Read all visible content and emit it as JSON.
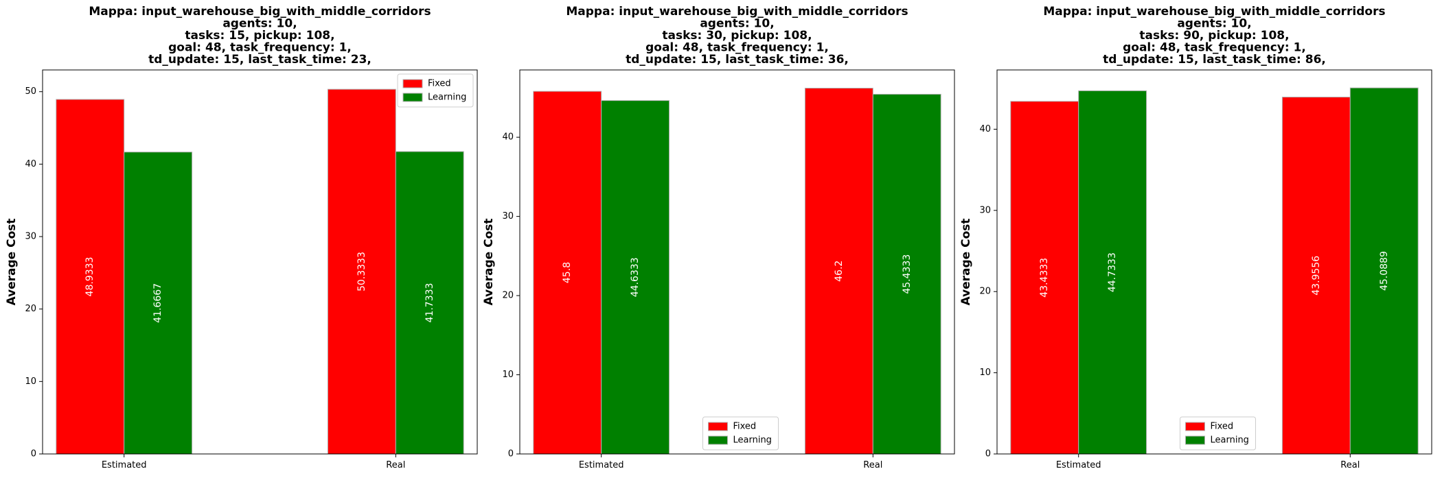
{
  "chart_data": [
    {
      "type": "bar",
      "title_lines": [
        "Mappa: input_warehouse_big_with_middle_corridors",
        "agents: 10,",
        "tasks: 15, pickup: 108,",
        "goal: 48, task_frequency: 1,",
        "td_update: 15, last_task_time: 23,"
      ],
      "ylabel": "Average Cost",
      "categories": [
        "Estimated",
        "Real"
      ],
      "ylim": [
        0,
        53
      ],
      "yticks": [
        0,
        10,
        20,
        30,
        40,
        50
      ],
      "legend_position": "upper right",
      "series": [
        {
          "name": "Fixed",
          "color": "#ff0000",
          "values": [
            48.9333,
            50.3333
          ],
          "labels": [
            "48.9333",
            "50.3333"
          ]
        },
        {
          "name": "Learning",
          "color": "#008000",
          "values": [
            41.6667,
            41.7333
          ],
          "labels": [
            "41.6667",
            "41.7333"
          ]
        }
      ]
    },
    {
      "type": "bar",
      "title_lines": [
        "Mappa: input_warehouse_big_with_middle_corridors",
        "agents: 10,",
        "tasks: 30, pickup: 108,",
        "goal: 48, task_frequency: 1,",
        "td_update: 15, last_task_time: 36,"
      ],
      "ylabel": "Average Cost",
      "categories": [
        "Estimated",
        "Real"
      ],
      "ylim": [
        0,
        48.5
      ],
      "yticks": [
        0,
        10,
        20,
        30,
        40
      ],
      "legend_position": "lower center",
      "series": [
        {
          "name": "Fixed",
          "color": "#ff0000",
          "values": [
            45.8,
            46.2
          ],
          "labels": [
            "45.8",
            "46.2"
          ]
        },
        {
          "name": "Learning",
          "color": "#008000",
          "values": [
            44.6333,
            45.4333
          ],
          "labels": [
            "44.6333",
            "45.4333"
          ]
        }
      ]
    },
    {
      "type": "bar",
      "title_lines": [
        "Mappa: input_warehouse_big_with_middle_corridors",
        "agents: 10,",
        "tasks: 90, pickup: 108,",
        "goal: 48, task_frequency: 1,",
        "td_update: 15, last_task_time: 86,"
      ],
      "ylabel": "Average Cost",
      "categories": [
        "Estimated",
        "Real"
      ],
      "ylim": [
        0,
        47.3
      ],
      "yticks": [
        0,
        10,
        20,
        30,
        40
      ],
      "legend_position": "lower center",
      "series": [
        {
          "name": "Fixed",
          "color": "#ff0000",
          "values": [
            43.4333,
            43.9556
          ],
          "labels": [
            "43.4333",
            "43.9556"
          ]
        },
        {
          "name": "Learning",
          "color": "#008000",
          "values": [
            44.7333,
            45.0889
          ],
          "labels": [
            "44.7333",
            "45.0889"
          ]
        }
      ]
    }
  ]
}
